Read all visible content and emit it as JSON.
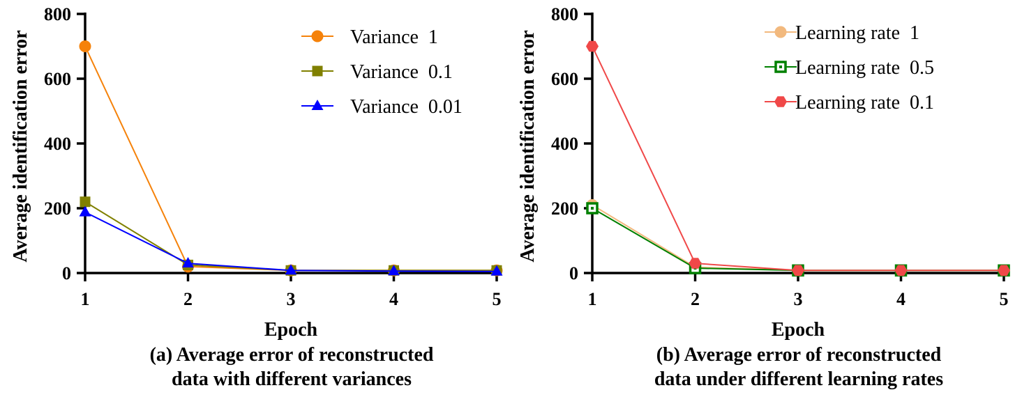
{
  "chart_data": [
    {
      "type": "line",
      "caption_lines": [
        "(a) Average error of reconstructed",
        "data with different variances"
      ],
      "xlabel": "Epoch",
      "ylabel": "Average identification error",
      "x": [
        1,
        2,
        3,
        4,
        5
      ],
      "x_tick_labels": [
        "1",
        "2",
        "3",
        "4",
        "5"
      ],
      "xlim": [
        1,
        5
      ],
      "ylim": [
        0,
        800
      ],
      "y_ticks": [
        0,
        200,
        400,
        600,
        800
      ],
      "y_tick_labels": [
        "0",
        "200",
        "400",
        "600",
        "800"
      ],
      "grid": false,
      "legend_position": "top-right",
      "series": [
        {
          "name": "Variance  1",
          "values": [
            700,
            20,
            8,
            8,
            8
          ],
          "color": "#F5820A",
          "marker": "circle"
        },
        {
          "name": "Variance  0.1",
          "values": [
            220,
            25,
            8,
            8,
            8
          ],
          "color": "#808000",
          "marker": "square"
        },
        {
          "name": "Variance  0.01",
          "values": [
            188,
            30,
            8,
            6,
            5
          ],
          "color": "#0000FF",
          "marker": "triangle"
        }
      ]
    },
    {
      "type": "line",
      "caption_lines": [
        "(b) Average error of reconstructed",
        "data under different learning rates"
      ],
      "xlabel": "Epoch",
      "ylabel": "Average identification error",
      "x": [
        1,
        2,
        3,
        4,
        5
      ],
      "x_tick_labels": [
        "1",
        "2",
        "3",
        "4",
        "5"
      ],
      "xlim": [
        1,
        5
      ],
      "ylim": [
        0,
        800
      ],
      "y_ticks": [
        0,
        200,
        400,
        600,
        800
      ],
      "y_tick_labels": [
        "0",
        "200",
        "400",
        "600",
        "800"
      ],
      "grid": false,
      "legend_position": "top-right",
      "series": [
        {
          "name": "Learning rate  1",
          "values": [
            210,
            18,
            8,
            8,
            8
          ],
          "color": "#F2B97E",
          "marker": "circle"
        },
        {
          "name": "Learning rate  0.5",
          "values": [
            200,
            15,
            8,
            8,
            8
          ],
          "color": "#008000",
          "marker": "square-dot"
        },
        {
          "name": "Learning rate  0.1",
          "values": [
            700,
            30,
            8,
            8,
            8
          ],
          "color": "#F04848",
          "marker": "hexagon"
        }
      ]
    }
  ]
}
